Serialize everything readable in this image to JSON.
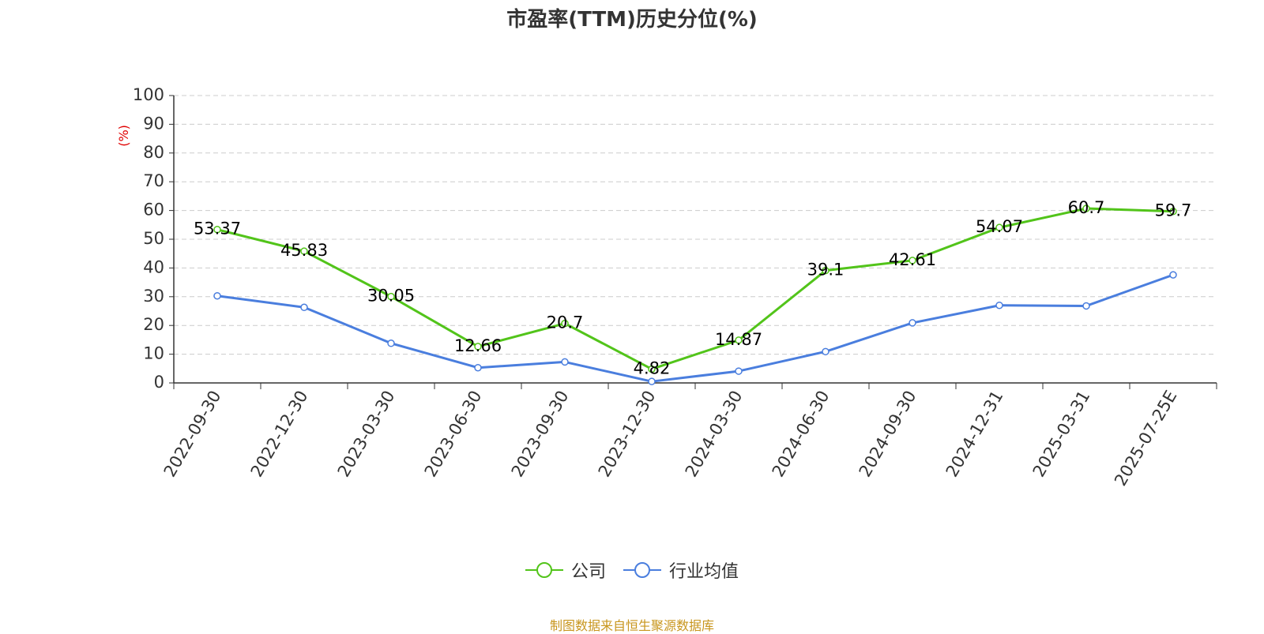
{
  "chart_data": {
    "type": "line",
    "title": "市盈率(TTM)历史分位(%)",
    "ylabel": "(%)",
    "xlabel": "",
    "ylim": [
      0,
      100
    ],
    "yticks": [
      0,
      10,
      20,
      30,
      40,
      50,
      60,
      70,
      80,
      90,
      100
    ],
    "grid": "horizontal dashed",
    "legend_position": "bottom-center",
    "categories": [
      "2022-09-30",
      "2022-12-30",
      "2023-03-30",
      "2023-06-30",
      "2023-09-30",
      "2023-12-30",
      "2024-03-30",
      "2024-06-30",
      "2024-09-30",
      "2024-12-31",
      "2025-03-31",
      "2025-07-25E"
    ],
    "series": [
      {
        "name": "公司",
        "color": "#52c41a",
        "values": [
          53.37,
          45.83,
          30.05,
          12.66,
          20.7,
          4.82,
          14.87,
          39.1,
          42.61,
          54.07,
          60.7,
          59.7
        ],
        "data_labels": [
          "53.37",
          "45.83",
          "30.05",
          "12.66",
          "20.7",
          "4.82",
          "14.87",
          "39.1",
          "42.61",
          "54.07",
          "60.7",
          "59.7"
        ]
      },
      {
        "name": "行业均值",
        "color": "#4a7ede",
        "values": [
          30.3,
          26.3,
          13.8,
          5.3,
          7.3,
          0.5,
          4.1,
          10.9,
          20.9,
          27.0,
          26.8,
          37.6
        ]
      }
    ]
  },
  "source_note": "制图数据来自恒生聚源数据库",
  "axis_color": "#333333",
  "grid_color": "#cccccc",
  "ylabel_color": "#e00000"
}
